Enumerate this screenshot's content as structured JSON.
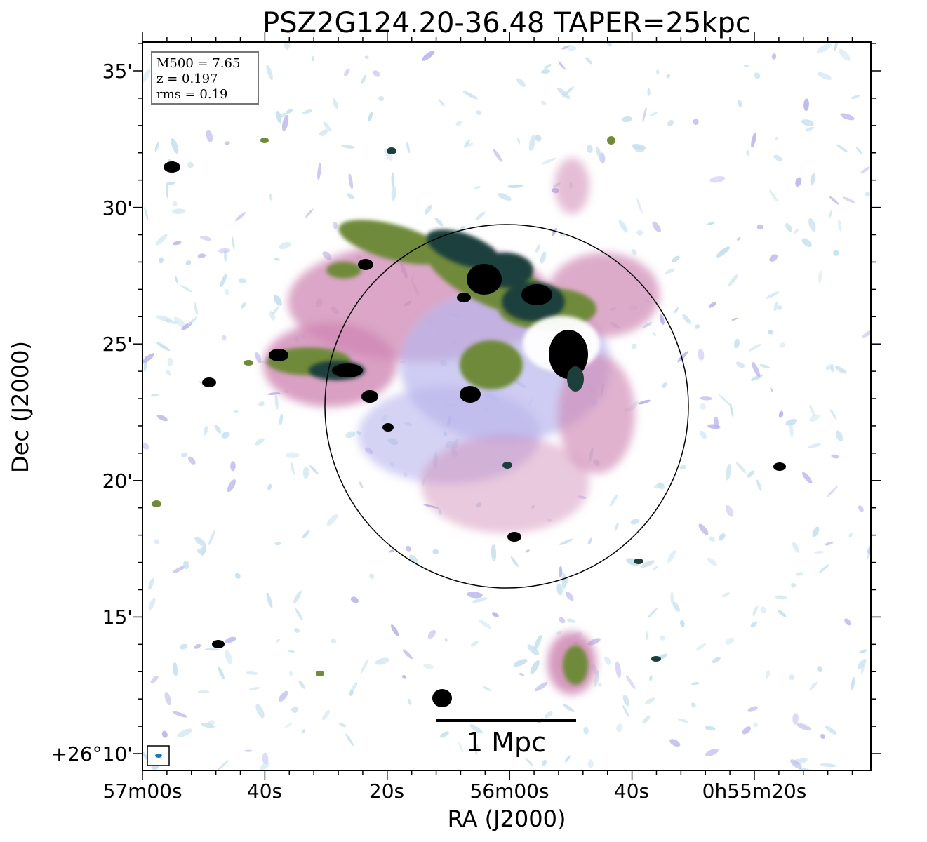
{
  "title": "PSZ2G124.20-36.48 TAPER=25kpc",
  "info_box": {
    "line1": "M500 = 7.65",
    "line2": "z = 0.197",
    "line3": "rms = 0.19"
  },
  "x_axis": {
    "label": "RA (J2000)",
    "ticks": [
      "57m00s",
      "40s",
      "20s",
      "56m00s",
      "40s",
      "0h55m20s"
    ]
  },
  "y_axis": {
    "label": "Dec (J2000)",
    "ticks": [
      "35'",
      "30'",
      "25'",
      "20'",
      "15'",
      "+26°10'"
    ]
  },
  "scalebar": {
    "label": "1 Mpc"
  },
  "colors": {
    "faint": "#c6e0ee",
    "lavender": "#b9b6ec",
    "pink": "#cf88b4",
    "olive": "#6f8a3b",
    "teal": "#1d3f3c",
    "source": "#000000"
  }
}
